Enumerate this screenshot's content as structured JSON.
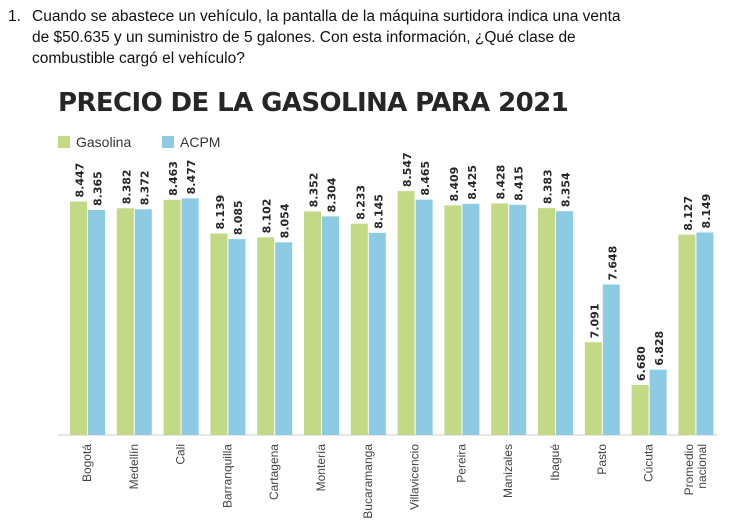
{
  "question": {
    "number": "1.",
    "line1": "Cuando se abastece un vehículo, la pantalla de la máquina surtidora indica una venta",
    "line2": "de $50.635 y un suministro de 5 galones. Con esta información, ¿Qué clase de",
    "line3": "combustible cargó el vehículo?"
  },
  "colors": {
    "gasolina": "#c3d985",
    "acpm": "#8dcbe5",
    "text": "#262626"
  },
  "chart_data": {
    "type": "bar",
    "title": "PRECIO DE LA GASOLINA PARA 2021",
    "categories": [
      "Bogotá",
      "Medellín",
      "Cali",
      "Barranquilla",
      "Cartagena",
      "Montería",
      "Bucaramanga",
      "Villavicencio",
      "Pereira",
      "Manizales",
      "Ibagué",
      "Pasto",
      "Cúcuta",
      "Promedio nacional"
    ],
    "category_lines": [
      [
        "Bogotá"
      ],
      [
        "Medellín"
      ],
      [
        "Cali"
      ],
      [
        "Barranquilla"
      ],
      [
        "Cartagena"
      ],
      [
        "Montería"
      ],
      [
        "Bucaramanga"
      ],
      [
        "Villavicencio"
      ],
      [
        "Pereira"
      ],
      [
        "Manizales"
      ],
      [
        "Ibagué"
      ],
      [
        "Pasto"
      ],
      [
        "Cúcuta"
      ],
      [
        "Promedio",
        "nacional"
      ]
    ],
    "series": [
      {
        "name": "Gasolina",
        "color": "#c3d985",
        "values": [
          8447,
          8382,
          8463,
          8139,
          8102,
          8352,
          8233,
          8547,
          8409,
          8428,
          8383,
          7091,
          6680,
          8127
        ],
        "labels": [
          "8.447",
          "8.382",
          "8.463",
          "8.139",
          "8.102",
          "8.352",
          "8.233",
          "8.547",
          "8.409",
          "8.428",
          "8.383",
          "7.091",
          "6.680",
          "8.127"
        ]
      },
      {
        "name": "ACPM",
        "color": "#8dcbe5",
        "values": [
          8365,
          8372,
          8477,
          8085,
          8054,
          8304,
          8145,
          8465,
          8425,
          8415,
          8354,
          7648,
          6828,
          8149
        ],
        "labels": [
          "8.365",
          "8.372",
          "8.477",
          "8.085",
          "8.054",
          "8.304",
          "8.145",
          "8.465",
          "8.425",
          "8.415",
          "8.354",
          "7.648",
          "6.828",
          "8.149"
        ]
      }
    ],
    "legend_position": "top-left",
    "grid": false
  }
}
